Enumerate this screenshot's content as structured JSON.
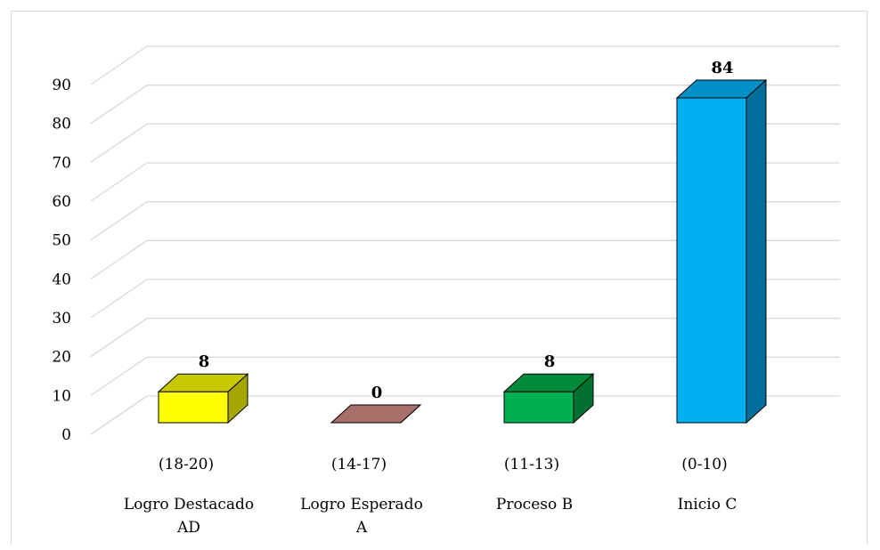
{
  "chart_data": {
    "type": "bar",
    "style": "3d-column",
    "categories": [
      {
        "range": "(18-20)",
        "name_lines": [
          "Logro Destacado",
          "AD"
        ]
      },
      {
        "range": "(14-17)",
        "name_lines": [
          "Logro Esperado",
          "A"
        ]
      },
      {
        "range": "(11-13)",
        "name_lines": [
          "Proceso B"
        ]
      },
      {
        "range": "(0-10)",
        "name_lines": [
          "Inicio C"
        ]
      }
    ],
    "values": [
      8,
      0,
      8,
      84
    ],
    "data_labels": [
      "8",
      "0",
      "8",
      "84"
    ],
    "colors": [
      {
        "front": "#ffff00",
        "top": "#c8c800",
        "side": "#a6a600"
      },
      {
        "front": "#a66f6a",
        "top": "#a66f6a",
        "side": "#7a4f4a"
      },
      {
        "front": "#00b050",
        "top": "#008a3c",
        "side": "#00702f"
      },
      {
        "front": "#00b0f0",
        "top": "#0090c8",
        "side": "#006e9a"
      }
    ],
    "ylim": [
      0,
      90
    ],
    "yticks": [
      0,
      10,
      20,
      30,
      40,
      50,
      60,
      70,
      80,
      90
    ],
    "title": "",
    "xlabel": "",
    "ylabel": "",
    "grid": true,
    "legend": "none"
  }
}
